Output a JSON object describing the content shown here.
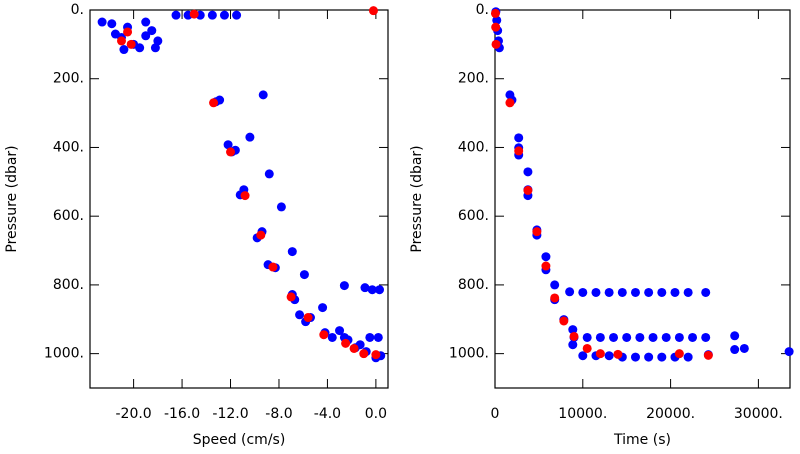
{
  "chart_data": [
    {
      "type": "scatter",
      "x_label": "Speed (cm/s)",
      "y_label": "Pressure (dbar)",
      "xlim": [
        -23.6,
        1.0
      ],
      "ylim": [
        1100,
        0
      ],
      "xticks": [
        {
          "value": -20,
          "label": "-20.0"
        },
        {
          "value": -16,
          "label": "-16.0"
        },
        {
          "value": -12,
          "label": "-12.0"
        },
        {
          "value": -8,
          "label": "-8.0"
        },
        {
          "value": -4,
          "label": "-4.0"
        },
        {
          "value": 0,
          "label": "0.0"
        }
      ],
      "yticks": [
        {
          "value": 0,
          "label": "0."
        },
        {
          "value": 200,
          "label": "200."
        },
        {
          "value": 400,
          "label": "400."
        },
        {
          "value": 600,
          "label": "600."
        },
        {
          "value": 800,
          "label": "800."
        },
        {
          "value": 1000,
          "label": "1000."
        }
      ],
      "series": [
        {
          "color": "#0000ff",
          "x": [
            -22.6,
            -21.8,
            -20.5,
            -19,
            -18.5,
            -21,
            -20,
            -19.5,
            -18,
            -21.5,
            -19,
            -18.2,
            -20.8,
            -16.5,
            -15.5,
            -14.5,
            -13.5,
            -12.5,
            -11.5,
            -9.3,
            -13.2,
            -12.9,
            -12.2,
            -11.9,
            -11.6,
            -10.4,
            -10.9,
            -11.2,
            -8.8,
            -9.4,
            -9.8,
            -7.8,
            -8.9,
            -8.3,
            -6.9,
            -6.9,
            -6.7,
            -5.9,
            -6.3,
            -5.8,
            -5.4,
            -2.6,
            -4.4,
            -4.2,
            -3.6,
            -3.0,
            -2.6,
            -2.3,
            -1.7,
            -1.3,
            -0.9,
            -0.3,
            0.3,
            -0.5,
            0.2,
            -0.8,
            0,
            0.4
          ],
          "values": [
            35,
            40,
            50,
            35,
            60,
            80,
            100,
            110,
            90,
            70,
            75,
            110,
            115,
            15,
            15,
            15,
            15,
            15,
            15,
            247,
            267,
            262,
            392,
            413,
            408,
            370,
            523,
            538,
            477,
            645,
            663,
            573,
            741,
            750,
            703,
            828,
            843,
            770,
            887,
            907,
            895,
            802,
            866,
            939,
            953,
            933,
            953,
            960,
            983,
            974,
            808,
            814,
            814,
            953,
            953,
            994,
            1012,
            1006
          ]
        },
        {
          "color": "#ff0000",
          "x": [
            -20.5,
            -21,
            -20.2,
            -15,
            -13.4,
            -12,
            -10.8,
            -9.5,
            -8.5,
            -7,
            -5.6,
            -4.3,
            -2.5,
            -1.8,
            -1,
            0,
            -0.2
          ],
          "values": [
            64,
            90,
            100,
            12,
            270,
            413,
            540,
            655,
            748,
            835,
            895,
            945,
            970,
            985,
            1000,
            1003,
            2
          ]
        }
      ]
    },
    {
      "type": "scatter",
      "x_label": "Time (s)",
      "y_label": "Pressure (dbar)",
      "xlim": [
        0,
        33600
      ],
      "ylim": [
        1100,
        0
      ],
      "xticks": [
        0,
        {
          "value": 10000,
          "label": "10000."
        },
        {
          "value": 20000,
          "label": "20000."
        },
        {
          "value": 30000,
          "label": "30000."
        }
      ],
      "yticks": [
        {
          "value": 0,
          "label": "0."
        },
        {
          "value": 200,
          "label": "200."
        },
        {
          "value": 400,
          "label": "400."
        },
        {
          "value": 600,
          "label": "600."
        },
        {
          "value": 800,
          "label": "800."
        },
        {
          "value": 1000,
          "label": "1000."
        }
      ],
      "series": [
        {
          "color": "#0000ff",
          "x": [
            100,
            200,
            300,
            400,
            500,
            1700,
            1930,
            2700,
            2700,
            2700,
            3750,
            3750,
            3750,
            4770,
            4770,
            5800,
            5800,
            6800,
            6800,
            7840,
            8860,
            8860,
            8500,
            10000,
            11500,
            13000,
            14500,
            16000,
            17500,
            19000,
            20500,
            22000,
            24000,
            9000,
            10500,
            12000,
            13500,
            15000,
            16500,
            18000,
            19500,
            21000,
            22500,
            24000,
            10000,
            11500,
            13000,
            14500,
            16000,
            17500,
            19000,
            20500,
            22000,
            24300,
            27300,
            27300,
            28400,
            33500
          ],
          "values": [
            5,
            30,
            60,
            90,
            110,
            247,
            262,
            372,
            401,
            422,
            471,
            523,
            540,
            640,
            655,
            718,
            756,
            800,
            843,
            901,
            930,
            974,
            820,
            822,
            822,
            822,
            822,
            822,
            822,
            822,
            822,
            822,
            822,
            953,
            953,
            953,
            953,
            953,
            953,
            953,
            953,
            953,
            953,
            953,
            1006,
            1006,
            1006,
            1010,
            1010,
            1010,
            1010,
            1010,
            1010,
            1003,
            948,
            988,
            985,
            994
          ]
        },
        {
          "color": "#ff0000",
          "x": [
            50,
            80,
            120,
            1700,
            2700,
            3750,
            4770,
            5800,
            6800,
            7840,
            9000,
            10500,
            12000,
            14000,
            21000,
            24300
          ],
          "values": [
            10,
            50,
            100,
            270,
            410,
            525,
            645,
            745,
            838,
            905,
            950,
            985,
            1000,
            1002,
            1000,
            1005
          ]
        }
      ]
    }
  ]
}
